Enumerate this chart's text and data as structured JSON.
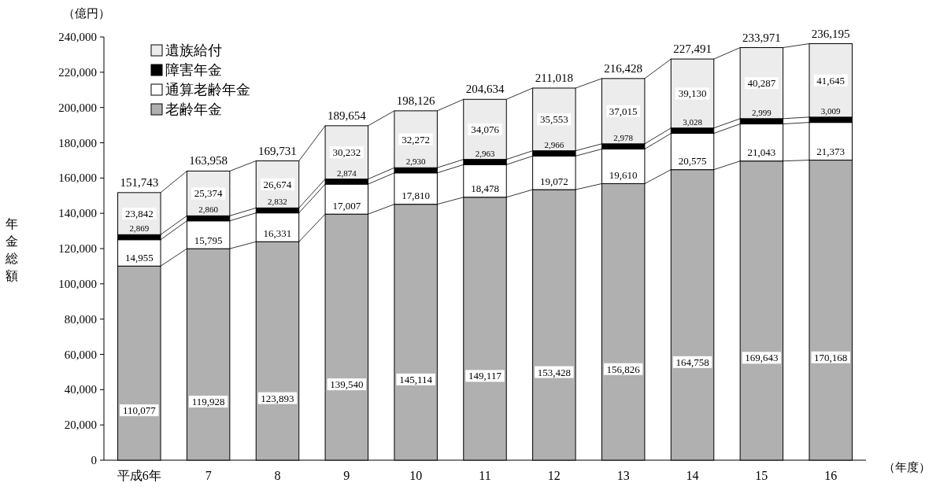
{
  "chart_data": {
    "type": "bar",
    "stacked": true,
    "ylabel": "年金総額",
    "xlabel": "（年度）",
    "annotations": [
      "（億円）"
    ],
    "categories": [
      "平成6年",
      "7",
      "8",
      "9",
      "10",
      "11",
      "12",
      "13",
      "14",
      "15",
      "16"
    ],
    "series": [
      {
        "name": "老齢年金",
        "color": "#b0b0b0",
        "values": [
          110077,
          119928,
          123893,
          139540,
          145114,
          149117,
          153428,
          156826,
          164758,
          169643,
          170168
        ],
        "value_labels": [
          "110,077",
          "119,928",
          "123,893",
          "139,540",
          "145,114",
          "149,117",
          "153,428",
          "156,826",
          "164,758",
          "169,643",
          "170,168"
        ]
      },
      {
        "name": "通算老齢年金",
        "color": "#ffffff",
        "values": [
          14955,
          15795,
          16331,
          17007,
          17810,
          18478,
          19072,
          19610,
          20575,
          21043,
          21373
        ],
        "value_labels": [
          "14,955",
          "15,795",
          "16,331",
          "17,007",
          "17,810",
          "18,478",
          "19,072",
          "19,610",
          "20,575",
          "21,043",
          "21,373"
        ]
      },
      {
        "name": "障害年金",
        "color": "#000000",
        "values": [
          2869,
          2860,
          2832,
          2874,
          2930,
          2963,
          2966,
          2978,
          3028,
          2999,
          3009
        ],
        "value_labels": [
          "2,869",
          "2,860",
          "2,832",
          "2,874",
          "2,930",
          "2,963",
          "2,966",
          "2,978",
          "3,028",
          "2,999",
          "3,009"
        ]
      },
      {
        "name": "遺族給付",
        "color": "#ececec",
        "values": [
          23842,
          25374,
          26674,
          30232,
          32272,
          34076,
          35553,
          37015,
          39130,
          40287,
          41645
        ],
        "value_labels": [
          "23,842",
          "25,374",
          "26,674",
          "30,232",
          "32,272",
          "34,076",
          "35,553",
          "37,015",
          "39,130",
          "40,287",
          "41,645"
        ]
      }
    ],
    "totals": [
      "151,743",
      "163,958",
      "169,731",
      "189,654",
      "198,126",
      "204,634",
      "211,018",
      "216,428",
      "227,491",
      "233,971",
      "236,195"
    ],
    "ylim": [
      0,
      240000
    ],
    "yticks": [
      0,
      {
        "value": 20000,
        "label": "20,000"
      },
      {
        "value": 40000,
        "label": "40,000"
      },
      {
        "value": 60000,
        "label": "60,000"
      },
      {
        "value": 80000,
        "label": "80,000"
      },
      {
        "value": 100000,
        "label": "100,000"
      },
      {
        "value": 120000,
        "label": "120,000"
      },
      {
        "value": 140000,
        "label": "140,000"
      },
      {
        "value": 160000,
        "label": "160,000"
      },
      {
        "value": 180000,
        "label": "180,000"
      },
      {
        "value": 200000,
        "label": "200,000"
      },
      {
        "value": 220000,
        "label": "220,000"
      },
      {
        "value": 240000,
        "label": "240,000"
      }
    ],
    "grid": false,
    "legend": "top left"
  }
}
